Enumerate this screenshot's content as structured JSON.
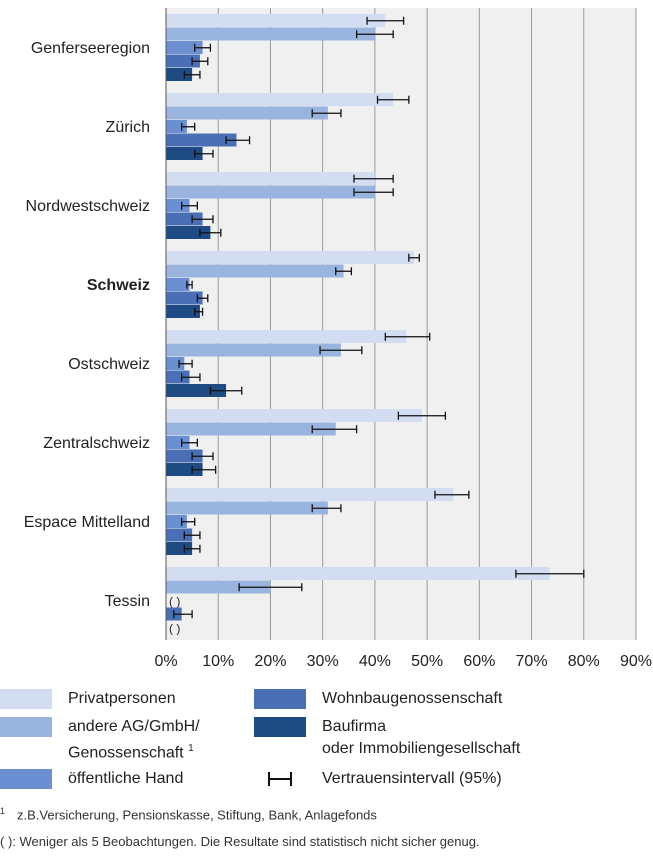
{
  "chart_data": {
    "type": "bar",
    "orientation": "horizontal",
    "xlim": [
      0,
      90
    ],
    "ticks": [
      0,
      10,
      20,
      30,
      40,
      50,
      60,
      70,
      80,
      90
    ],
    "tick_suffix": "%",
    "grid": true,
    "categories": [
      "Genferseeregion",
      "Zürich",
      "Nordwestschweiz",
      "Schweiz",
      "Ostschweiz",
      "Zentralschweiz",
      "Espace Mittelland",
      "Tessin"
    ],
    "highlight_category": "Schweiz",
    "missing_label": "( )",
    "series": [
      {
        "name": "Privatpersonen",
        "color": "#d3ddf2",
        "values": [
          42,
          43.5,
          40,
          47.5,
          46,
          49,
          55,
          73.5
        ],
        "ci": [
          [
            38.5,
            45.5
          ],
          [
            40.5,
            46.5
          ],
          [
            36,
            43.5
          ],
          [
            46.5,
            48.5
          ],
          [
            42,
            50.5
          ],
          [
            44.5,
            53.5
          ],
          [
            51.5,
            58
          ],
          [
            67,
            80
          ]
        ]
      },
      {
        "name": "andere AG/GmbH/ Genossenschaft",
        "color": "#9ab4e0",
        "values": [
          40,
          31,
          40,
          34,
          33.5,
          32.5,
          31,
          20
        ],
        "ci": [
          [
            36.5,
            43.5
          ],
          [
            28,
            33.5
          ],
          [
            36,
            43.5
          ],
          [
            32.5,
            35.5
          ],
          [
            29.5,
            37.5
          ],
          [
            28,
            36.5
          ],
          [
            28,
            33.5
          ],
          [
            14,
            26
          ]
        ]
      },
      {
        "name": "öffentliche Hand",
        "color": "#6b8fd0",
        "values": [
          7,
          4,
          4.5,
          4.5,
          3.5,
          4.5,
          4,
          null
        ],
        "ci": [
          [
            5.5,
            8.5
          ],
          [
            3,
            5.5
          ],
          [
            3,
            6
          ],
          [
            4,
            5
          ],
          [
            2.5,
            5
          ],
          [
            3,
            6
          ],
          [
            3,
            5.5
          ],
          null
        ]
      },
      {
        "name": "Wohnbaugenossenschaft",
        "color": "#4a6fb5",
        "values": [
          6.5,
          13.5,
          7,
          7,
          4.5,
          7,
          5,
          3
        ],
        "ci": [
          [
            5,
            8
          ],
          [
            11.5,
            16
          ],
          [
            5,
            9
          ],
          [
            6,
            8
          ],
          [
            3,
            6.5
          ],
          [
            5,
            9
          ],
          [
            3.5,
            6.5
          ],
          [
            1.5,
            5
          ]
        ]
      },
      {
        "name": "Baufirma oder Immobiliengesellschaft",
        "color": "#1f4b84",
        "values": [
          5,
          7,
          8.5,
          6.5,
          11.5,
          7,
          5,
          null
        ],
        "ci": [
          [
            3.5,
            6.5
          ],
          [
            5.5,
            9
          ],
          [
            6.5,
            10.5
          ],
          [
            5.5,
            7
          ],
          [
            8.5,
            14.5
          ],
          [
            5,
            9.5
          ],
          [
            3.5,
            6.5
          ],
          null
        ]
      }
    ],
    "legend": {
      "items": [
        {
          "label": "Privatpersonen",
          "color": "#d3ddf2"
        },
        {
          "label": "Wohnbaugenossenschaft",
          "color": "#4a6fb5"
        },
        {
          "label": "andere AG/GmbH/",
          "label2": "Genossenschaft",
          "sup": "1",
          "color": "#9ab4e0"
        },
        {
          "label": "Baufirma",
          "label2": "oder Immobiliengesellschaft",
          "color": "#1f4b84"
        },
        {
          "label": "öffentliche Hand",
          "color": "#6b8fd0"
        },
        {
          "label": "Vertrauensintervall (95%)"
        }
      ]
    }
  },
  "footnotes": {
    "fn1_mark": "1",
    "fn1": "z.B.Versicherung, Pensionskasse, Stiftung, Bank, Anlagefonds",
    "fn2": "( ): Weniger als 5 Beobachtungen. Die Resultate sind statistisch nicht sicher genug."
  }
}
